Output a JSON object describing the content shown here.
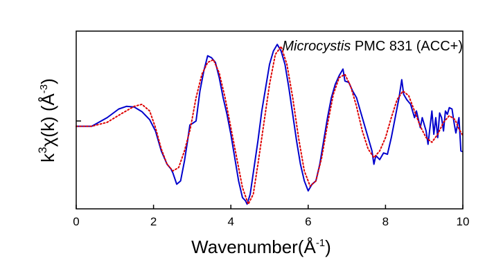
{
  "chart_data": {
    "type": "line",
    "title": "",
    "annotation": {
      "italic": "Microcystis",
      "rest": " PMC 831 (ACC+)"
    },
    "xlabel": {
      "main": "Wavenumber(Å",
      "sup": "-1",
      "close": ")"
    },
    "ylabel": {
      "k": "k",
      "sup": "3",
      "main": "χ(k) (Å",
      "sup2": "-3",
      "close": ")"
    },
    "xlim": [
      0,
      10
    ],
    "ylim": [
      -1.32,
      1.35
    ],
    "x_ticks": [
      "0",
      "2",
      "4",
      "6",
      "8",
      "10"
    ],
    "y_ticks": [
      0
    ],
    "grid": false,
    "legend": "none",
    "series": [
      {
        "style": "solid",
        "color": "#0000cc",
        "points": [
          [
            0,
            -0.08
          ],
          [
            0.4,
            -0.08
          ],
          [
            0.8,
            0.05
          ],
          [
            1.1,
            0.18
          ],
          [
            1.3,
            0.22
          ],
          [
            1.5,
            0.21
          ],
          [
            1.7,
            0.14
          ],
          [
            1.9,
            0.02
          ],
          [
            2.05,
            -0.15
          ],
          [
            2.2,
            -0.45
          ],
          [
            2.35,
            -0.65
          ],
          [
            2.45,
            -0.72
          ],
          [
            2.5,
            -0.78
          ],
          [
            2.6,
            -0.95
          ],
          [
            2.7,
            -0.9
          ],
          [
            2.8,
            -0.6
          ],
          [
            2.88,
            -0.3
          ],
          [
            2.94,
            -0.06
          ],
          [
            3.0,
            -0.04
          ],
          [
            3.1,
            0.0
          ],
          [
            3.2,
            0.45
          ],
          [
            3.3,
            0.75
          ],
          [
            3.4,
            0.98
          ],
          [
            3.5,
            0.95
          ],
          [
            3.6,
            0.88
          ],
          [
            3.7,
            0.65
          ],
          [
            3.8,
            0.35
          ],
          [
            3.9,
            0.1
          ],
          [
            4.0,
            -0.2
          ],
          [
            4.1,
            -0.55
          ],
          [
            4.2,
            -0.9
          ],
          [
            4.3,
            -1.15
          ],
          [
            4.38,
            -1.2
          ],
          [
            4.42,
            -1.25
          ],
          [
            4.5,
            -1.1
          ],
          [
            4.6,
            -0.7
          ],
          [
            4.7,
            -0.3
          ],
          [
            4.8,
            0.15
          ],
          [
            4.9,
            0.5
          ],
          [
            5.0,
            0.85
          ],
          [
            5.1,
            1.05
          ],
          [
            5.2,
            1.15
          ],
          [
            5.3,
            1.05
          ],
          [
            5.4,
            0.85
          ],
          [
            5.5,
            0.5
          ],
          [
            5.6,
            0.1
          ],
          [
            5.7,
            -0.3
          ],
          [
            5.8,
            -0.65
          ],
          [
            5.9,
            -0.9
          ],
          [
            6.0,
            -1.05
          ],
          [
            6.1,
            -0.95
          ],
          [
            6.2,
            -0.9
          ],
          [
            6.3,
            -0.65
          ],
          [
            6.4,
            -0.3
          ],
          [
            6.5,
            0.05
          ],
          [
            6.6,
            0.35
          ],
          [
            6.7,
            0.55
          ],
          [
            6.8,
            0.68
          ],
          [
            6.9,
            0.78
          ],
          [
            6.95,
            0.6
          ],
          [
            7.05,
            0.58
          ],
          [
            7.15,
            0.45
          ],
          [
            7.25,
            0.35
          ],
          [
            7.35,
            0.15
          ],
          [
            7.45,
            -0.05
          ],
          [
            7.55,
            -0.25
          ],
          [
            7.65,
            -0.45
          ],
          [
            7.7,
            -0.65
          ],
          [
            7.75,
            -0.52
          ],
          [
            7.85,
            -0.58
          ],
          [
            7.95,
            -0.48
          ],
          [
            8.05,
            -0.5
          ],
          [
            8.15,
            -0.25
          ],
          [
            8.25,
            0.05
          ],
          [
            8.35,
            0.35
          ],
          [
            8.42,
            0.62
          ],
          [
            8.47,
            0.4
          ],
          [
            8.55,
            0.32
          ],
          [
            8.65,
            0.25
          ],
          [
            8.75,
            0.05
          ],
          [
            8.8,
            0.15
          ],
          [
            8.9,
            -0.1
          ],
          [
            8.95,
            0.05
          ],
          [
            9.05,
            -0.15
          ],
          [
            9.1,
            -0.35
          ],
          [
            9.15,
            -0.1
          ],
          [
            9.2,
            0.15
          ],
          [
            9.25,
            -0.2
          ],
          [
            9.3,
            0.05
          ],
          [
            9.35,
            -0.25
          ],
          [
            9.4,
            0.12
          ],
          [
            9.45,
            0.05
          ],
          [
            9.5,
            -0.15
          ],
          [
            9.55,
            0.15
          ],
          [
            9.6,
            0.1
          ],
          [
            9.65,
            0.2
          ],
          [
            9.72,
            0.18
          ],
          [
            9.78,
            -0.05
          ],
          [
            9.82,
            -0.18
          ],
          [
            9.9,
            0.05
          ],
          [
            9.95,
            -0.45
          ],
          [
            10.0,
            -0.46
          ]
        ]
      },
      {
        "style": "dotted",
        "color": "#dd0000",
        "points": [
          [
            0,
            -0.08
          ],
          [
            0.4,
            -0.08
          ],
          [
            0.8,
            -0.02
          ],
          [
            1.2,
            0.12
          ],
          [
            1.5,
            0.22
          ],
          [
            1.7,
            0.25
          ],
          [
            1.9,
            0.15
          ],
          [
            2.05,
            -0.1
          ],
          [
            2.2,
            -0.42
          ],
          [
            2.35,
            -0.65
          ],
          [
            2.5,
            -0.75
          ],
          [
            2.65,
            -0.7
          ],
          [
            2.8,
            -0.45
          ],
          [
            2.95,
            -0.12
          ],
          [
            3.1,
            0.35
          ],
          [
            3.25,
            0.7
          ],
          [
            3.4,
            0.88
          ],
          [
            3.55,
            0.92
          ],
          [
            3.7,
            0.72
          ],
          [
            3.85,
            0.35
          ],
          [
            4.0,
            -0.1
          ],
          [
            4.15,
            -0.55
          ],
          [
            4.3,
            -1.0
          ],
          [
            4.45,
            -1.25
          ],
          [
            4.58,
            -1.1
          ],
          [
            4.7,
            -0.65
          ],
          [
            4.85,
            -0.05
          ],
          [
            5.0,
            0.55
          ],
          [
            5.15,
            1.0
          ],
          [
            5.3,
            1.12
          ],
          [
            5.45,
            0.85
          ],
          [
            5.6,
            0.35
          ],
          [
            5.75,
            -0.25
          ],
          [
            5.9,
            -0.75
          ],
          [
            6.05,
            -0.98
          ],
          [
            6.2,
            -0.9
          ],
          [
            6.35,
            -0.55
          ],
          [
            6.5,
            -0.05
          ],
          [
            6.65,
            0.4
          ],
          [
            6.8,
            0.65
          ],
          [
            6.95,
            0.7
          ],
          [
            7.1,
            0.52
          ],
          [
            7.25,
            0.22
          ],
          [
            7.4,
            -0.15
          ],
          [
            7.55,
            -0.42
          ],
          [
            7.7,
            -0.55
          ],
          [
            7.85,
            -0.45
          ],
          [
            8.0,
            -0.25
          ],
          [
            8.15,
            0.05
          ],
          [
            8.3,
            0.32
          ],
          [
            8.45,
            0.45
          ],
          [
            8.6,
            0.38
          ],
          [
            8.75,
            0.15
          ],
          [
            8.9,
            -0.08
          ],
          [
            9.05,
            -0.25
          ],
          [
            9.2,
            -0.32
          ],
          [
            9.35,
            -0.2
          ],
          [
            9.5,
            -0.02
          ],
          [
            9.65,
            0.08
          ],
          [
            9.8,
            0.02
          ],
          [
            9.9,
            -0.12
          ],
          [
            10.0,
            -0.22
          ]
        ]
      }
    ]
  }
}
